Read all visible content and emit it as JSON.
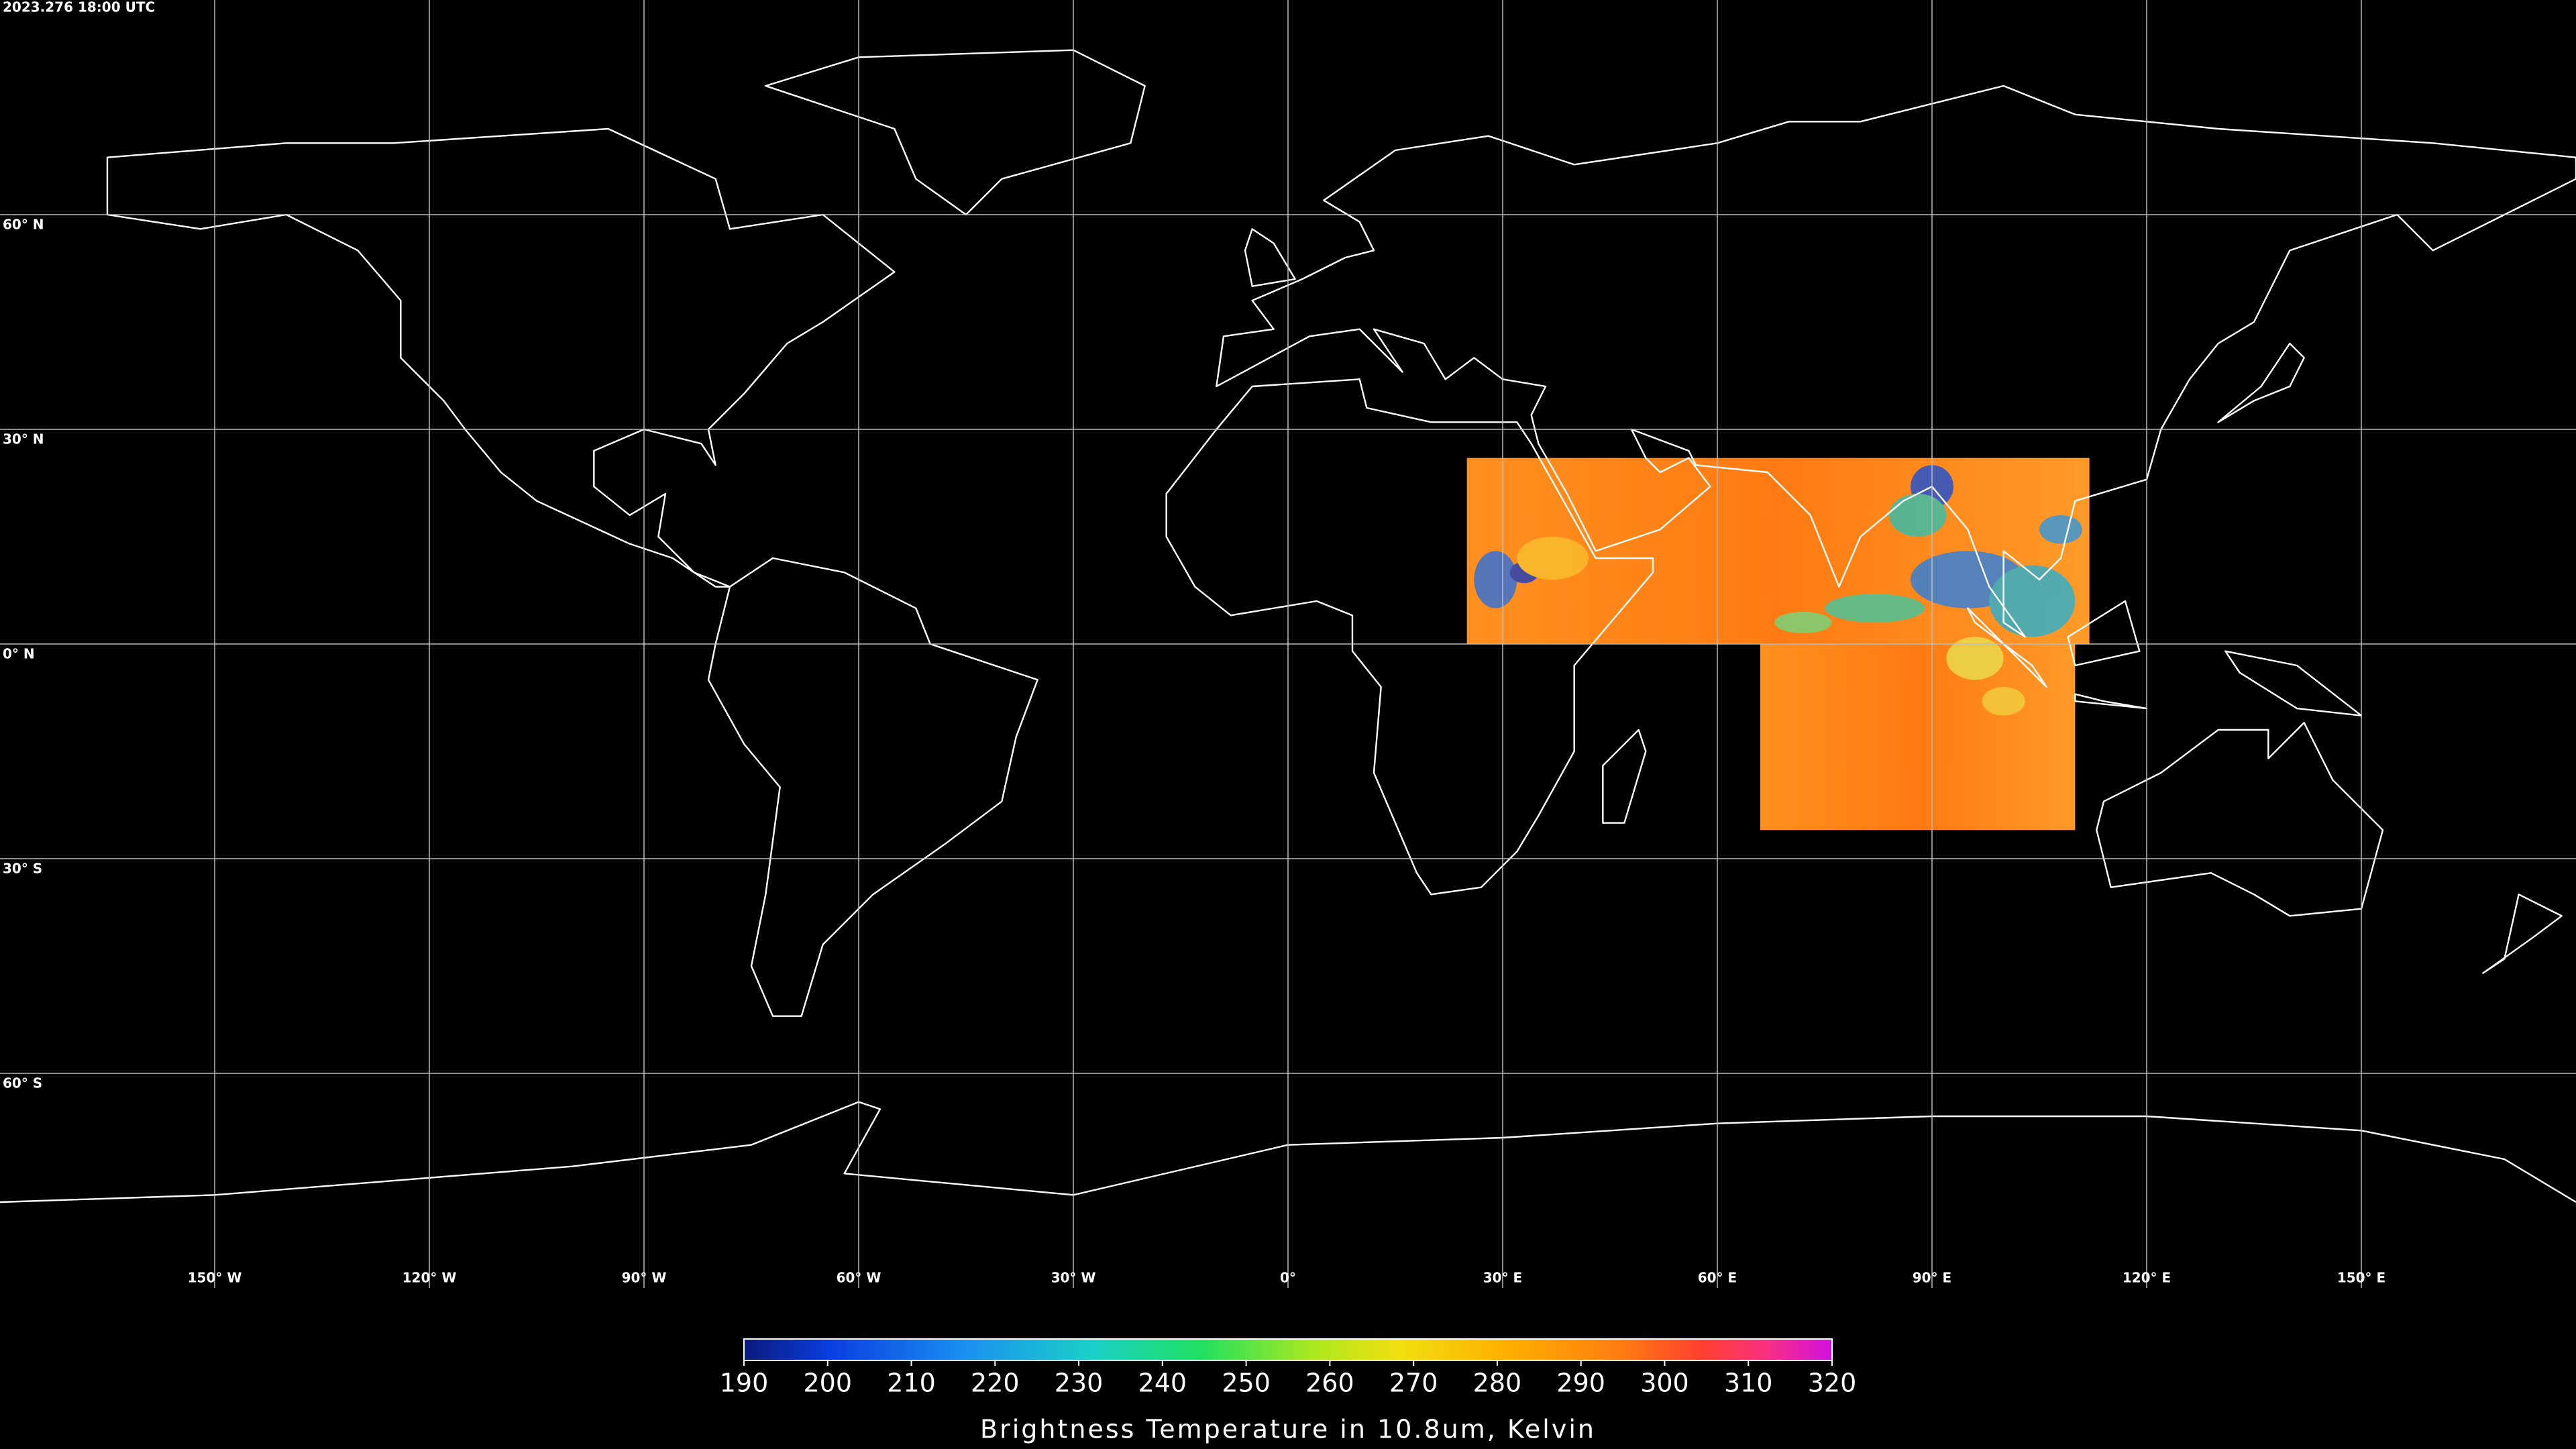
{
  "header": {
    "timestamp": "2023.276 18:00 UTC"
  },
  "chart_data": {
    "type": "map",
    "xlim": [
      -180,
      180
    ],
    "ylim": [
      -90,
      90
    ],
    "xticks": [
      {
        "value": -150,
        "label": "150° W"
      },
      {
        "value": -120,
        "label": "120° W"
      },
      {
        "value": -90,
        "label": "90° W"
      },
      {
        "value": -60,
        "label": "60° W"
      },
      {
        "value": -30,
        "label": "30° W"
      },
      {
        "value": 0,
        "label": "0°"
      },
      {
        "value": 30,
        "label": "30° E"
      },
      {
        "value": 60,
        "label": "60° E"
      },
      {
        "value": 90,
        "label": "90° E"
      },
      {
        "value": 120,
        "label": "120° E"
      },
      {
        "value": 150,
        "label": "150° E"
      }
    ],
    "yticks": [
      {
        "value": 60,
        "label": "60° N"
      },
      {
        "value": 30,
        "label": "30° N"
      },
      {
        "value": 0,
        "label": "0° N"
      },
      {
        "value": -30,
        "label": "30° S"
      },
      {
        "value": -60,
        "label": "60° S"
      }
    ],
    "grid": true,
    "colorbar": {
      "title": "Brightness Temperature in 10.8um, Kelvin",
      "range": [
        190,
        320
      ],
      "ticks": [
        190,
        200,
        210,
        220,
        230,
        240,
        250,
        260,
        270,
        280,
        290,
        300,
        310,
        320
      ]
    }
  }
}
